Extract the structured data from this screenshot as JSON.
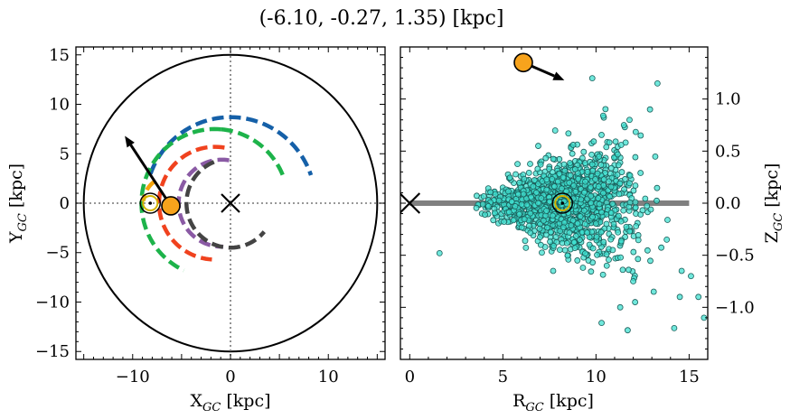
{
  "title": "(-6.10, -0.27, 1.35) [kpc]",
  "chart_data": [
    {
      "type": "scatter",
      "panel": "left",
      "xlabel": "X",
      "xlabel_sub": "GC",
      "xlabel_unit": " [kpc]",
      "ylabel": "Y",
      "ylabel_sub": "GC",
      "ylabel_unit": " [kpc]",
      "xlim": [
        -15.8,
        15.8
      ],
      "ylim": [
        -15.8,
        15.8
      ],
      "xticks": [
        -10,
        -5,
        0,
        5,
        10
      ],
      "xtick_labels": [
        "−10",
        "",
        "0",
        "",
        "10"
      ],
      "yticks": [
        15,
        10,
        5,
        0,
        -5,
        -10,
        -15
      ],
      "ytick_labels": [
        "15",
        "10",
        "5",
        "0",
        "−5",
        "−10",
        "−15"
      ],
      "galactic_boundary_radius": 15,
      "galactic_center": [
        0,
        0
      ],
      "spiral_arcs": [
        {
          "color": "#1560a8",
          "center": [
            0,
            0
          ],
          "radius": 8.7,
          "ang_start": 160,
          "ang_end": 19
        },
        {
          "color": "#1db34a",
          "center": [
            -1.6,
            0
          ],
          "radius": 7.5,
          "ang_start": 85,
          "ang_end": 245
        },
        {
          "color": "#1db34a",
          "center": [
            -1.6,
            0
          ],
          "radius": 7.5,
          "ang_start": 85,
          "ang_end": 20
        },
        {
          "color": "#f0421e",
          "center": [
            -1.6,
            0
          ],
          "radius": 5.7,
          "ang_start": 80,
          "ang_end": 267
        },
        {
          "color": "#8a5aa4",
          "center": [
            -0.9,
            0
          ],
          "radius": 4.4,
          "ang_start": 80,
          "ang_end": 272
        },
        {
          "color": "#444444",
          "center": [
            0,
            0
          ],
          "radius": 4.5,
          "ang_start": 112,
          "ang_end": 320
        },
        {
          "color": "#f5a40c",
          "center": [
            -6.2,
            0
          ],
          "radius": 2.7,
          "ang_start": 125,
          "ang_end": 175
        }
      ],
      "sun_position": [
        -8.2,
        0.0
      ],
      "object_position": [
        -6.1,
        -0.27
      ],
      "velocity_arrow_tip": [
        -10.8,
        6.8
      ]
    },
    {
      "type": "scatter",
      "panel": "right",
      "xlabel": "R",
      "xlabel_sub": "GC",
      "xlabel_unit": " [kpc]",
      "ylabel": "Z",
      "ylabel_sub": "GC",
      "ylabel_unit": " [kpc]",
      "xlim": [
        -0.5,
        16
      ],
      "ylim": [
        -1.5,
        1.5
      ],
      "xticks": [
        0,
        5,
        10,
        15
      ],
      "xtick_labels": [
        "0",
        "5",
        "10",
        "15"
      ],
      "yticks": [
        1.0,
        0.5,
        0.0,
        -0.5,
        -1.0
      ],
      "ytick_labels": [
        "1.0",
        "0.5",
        "0.0",
        "−0.5",
        "−1.0"
      ],
      "disk_line": {
        "x": [
          0,
          15
        ],
        "z": 0
      },
      "sun_position": [
        8.2,
        0.0
      ],
      "object_position": [
        6.1,
        1.35
      ],
      "velocity_arrow_tip": [
        8.3,
        1.18
      ],
      "scatter_color": "#40e0d0",
      "scatter_points": {
        "n": 1400,
        "note_excluded": false,
        "x": [
          13.3,
          9.8,
          14.6,
          11.8,
          12.9,
          15.5,
          15.8,
          12.1,
          11.3,
          10.3,
          1.6,
          7.7,
          9.3,
          13.1,
          12.0,
          14.5,
          15.1,
          11.5,
          12.4,
          6.9,
          9.0,
          10.9,
          13.8,
          14.2,
          11.7
        ],
        "z": [
          1.15,
          1.2,
          -0.65,
          0.8,
          0.9,
          -0.9,
          -1.1,
          -0.95,
          -1.0,
          -1.15,
          -0.48,
          -0.65,
          -0.62,
          -0.85,
          -0.75,
          -0.9,
          -0.7,
          0.75,
          0.65,
          0.55,
          -0.55,
          -0.45,
          -0.35,
          -1.2,
          -1.22
        ]
      }
    }
  ]
}
